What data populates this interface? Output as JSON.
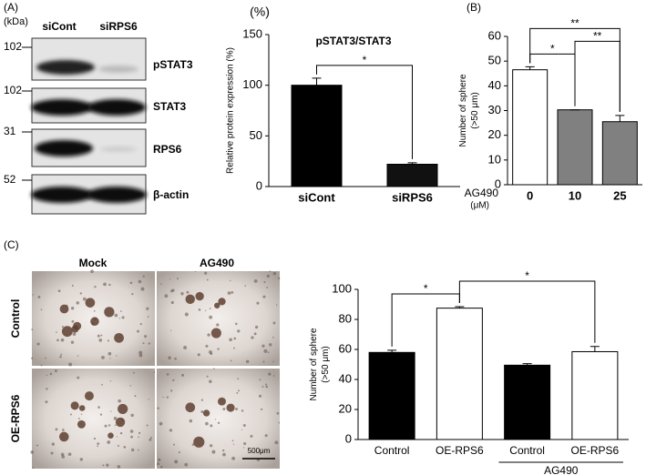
{
  "panels": {
    "a": "(A)",
    "b": "(B)",
    "c": "(C)"
  },
  "blot": {
    "unit": "(kDa)",
    "lanes": [
      "siCont",
      "siRPS6"
    ],
    "markers": [
      "102",
      "102",
      "31",
      "52"
    ],
    "proteins": [
      "pSTAT3",
      "STAT3",
      "RPS6",
      "β-actin"
    ]
  },
  "micrographs": {
    "columns": [
      "Mock",
      "AG490"
    ],
    "rows": [
      "Control",
      "OE-RPS6"
    ],
    "scale_bar": "500μm"
  },
  "chart_data": [
    {
      "type": "bar",
      "title": "pSTAT3/STAT3",
      "unit_label": "(%)",
      "ylabel": [
        "Relative protein expression (%)"
      ],
      "categories": [
        "siCont",
        "siRPS6"
      ],
      "values": [
        100,
        22
      ],
      "errors": [
        7,
        1.5
      ],
      "colors": [
        "#000000",
        "#111111"
      ],
      "ylim": [
        0,
        150
      ],
      "yticks": [
        0,
        50,
        100,
        150
      ],
      "annotations": [
        {
          "label": "*",
          "span": [
            0,
            1
          ]
        }
      ]
    },
    {
      "type": "bar",
      "ylabel": [
        "Number of sphere",
        "(>50 μm)"
      ],
      "x_axis_label": "AG490",
      "x_axis_unit": "(μM)",
      "categories": [
        "0",
        "10",
        "25"
      ],
      "values": [
        46.5,
        30.3,
        25.5
      ],
      "errors": [
        1.2,
        0,
        2.5
      ],
      "colors": [
        "#ffffff",
        "#808080",
        "#808080"
      ],
      "ylim": [
        0,
        60
      ],
      "yticks": [
        0,
        10,
        20,
        30,
        40,
        50,
        60
      ],
      "annotations": [
        {
          "label": "*",
          "span": [
            0,
            1
          ]
        },
        {
          "label": "**",
          "span": [
            1,
            2
          ]
        },
        {
          "label": "**",
          "span": [
            0,
            2
          ]
        }
      ]
    },
    {
      "type": "bar",
      "ylabel": [
        "Number of sphere",
        "(>50 μm)"
      ],
      "categories": [
        "Control",
        "OE-RPS6",
        "Control",
        "OE-RPS6"
      ],
      "values": [
        58,
        87.5,
        49.5,
        58.5
      ],
      "errors": [
        1.5,
        1,
        1,
        3.5
      ],
      "colors": [
        "#000000",
        "#ffffff",
        "#000000",
        "#ffffff"
      ],
      "ylim": [
        0,
        100
      ],
      "yticks": [
        0,
        20,
        40,
        60,
        80,
        100
      ],
      "groups": [
        {
          "label": "AG490",
          "span": [
            2,
            3
          ]
        }
      ],
      "annotations": [
        {
          "label": "*",
          "span": [
            0,
            1
          ]
        },
        {
          "label": "*",
          "span": [
            1,
            3
          ]
        }
      ]
    }
  ]
}
